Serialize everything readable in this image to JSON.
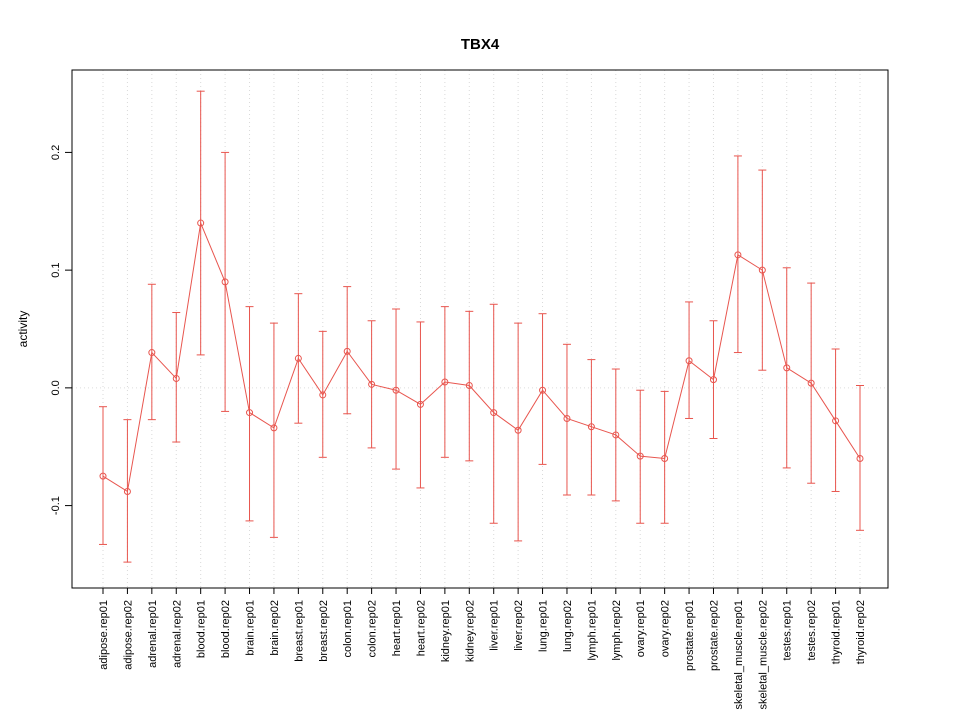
{
  "chart_data": {
    "type": "line",
    "title": "TBX4",
    "xlabel": "",
    "ylabel": "activity",
    "categories": [
      "adipose.rep01",
      "adipose.rep02",
      "adrenal.rep01",
      "adrenal.rep02",
      "blood.rep01",
      "blood.rep02",
      "brain.rep01",
      "brain.rep02",
      "breast.rep01",
      "breast.rep02",
      "colon.rep01",
      "colon.rep02",
      "heart.rep01",
      "heart.rep02",
      "kidney.rep01",
      "kidney.rep02",
      "liver.rep01",
      "liver.rep02",
      "lung.rep01",
      "lung.rep02",
      "lymph.rep01",
      "lymph.rep02",
      "ovary.rep01",
      "ovary.rep02",
      "prostate.rep01",
      "prostate.rep02",
      "skeletal_muscle.rep01",
      "skeletal_muscle.rep02",
      "testes.rep01",
      "testes.rep02",
      "thyroid.rep01",
      "thyroid.rep02"
    ],
    "series": [
      {
        "name": "activity",
        "values": [
          -0.075,
          -0.088,
          0.03,
          0.008,
          0.14,
          0.09,
          -0.021,
          -0.034,
          0.025,
          -0.006,
          0.031,
          0.003,
          -0.002,
          -0.014,
          0.005,
          0.002,
          -0.021,
          -0.036,
          -0.002,
          -0.026,
          -0.033,
          -0.04,
          -0.058,
          -0.06,
          0.023,
          0.007,
          0.113,
          0.1,
          0.017,
          0.004,
          -0.028,
          -0.06
        ],
        "error_low": [
          -0.133,
          -0.148,
          -0.027,
          -0.046,
          0.028,
          -0.02,
          -0.113,
          -0.127,
          -0.03,
          -0.059,
          -0.022,
          -0.051,
          -0.069,
          -0.085,
          -0.059,
          -0.062,
          -0.115,
          -0.13,
          -0.065,
          -0.091,
          -0.091,
          -0.096,
          -0.115,
          -0.115,
          -0.026,
          -0.043,
          0.03,
          0.015,
          -0.068,
          -0.081,
          -0.088,
          -0.121
        ],
        "error_high": [
          -0.016,
          -0.027,
          0.088,
          0.064,
          0.252,
          0.2,
          0.069,
          0.055,
          0.08,
          0.048,
          0.086,
          0.057,
          0.067,
          0.056,
          0.069,
          0.065,
          0.071,
          0.055,
          0.063,
          0.037,
          0.024,
          0.016,
          -0.002,
          -0.003,
          0.073,
          0.057,
          0.197,
          0.185,
          0.102,
          0.089,
          0.033,
          0.002
        ]
      }
    ],
    "ylim": [
      -0.17,
      0.27
    ],
    "yticks": [
      -0.1,
      0.0,
      0.1,
      0.2
    ],
    "ytick_labels": [
      "-0.1",
      "0.0",
      "0.1",
      "0.2"
    ],
    "grid": "vertical-dotted",
    "zero_line": true,
    "legend": "none",
    "point_style": "open-circle",
    "colors": {
      "series": "#e8554e",
      "grid": "#d9d9d9",
      "zero_line": "#dcdcdc",
      "axis": "#000000",
      "background": "#ffffff"
    }
  }
}
